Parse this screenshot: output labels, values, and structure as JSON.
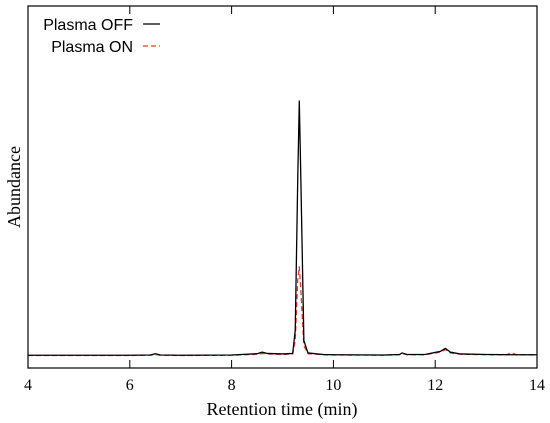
{
  "chart_data": {
    "type": "line",
    "xlabel": "Retention time (min)",
    "ylabel": "Abundance",
    "xlim": [
      4,
      14
    ],
    "ylim": [
      0,
      100
    ],
    "xticks": [
      4,
      6,
      8,
      10,
      12,
      14
    ],
    "y_tick_labels_shown": false,
    "grid": false,
    "legend_position": "top-left",
    "series": [
      {
        "name": "Plasma OFF",
        "color": "#000000",
        "dash": "solid",
        "x": [
          4.0,
          5.0,
          6.0,
          6.4,
          6.5,
          6.6,
          7.0,
          8.0,
          8.5,
          8.6,
          8.7,
          9.0,
          9.2,
          9.25,
          9.3,
          9.33,
          9.36,
          9.42,
          9.5,
          9.8,
          10.0,
          11.0,
          11.3,
          11.35,
          11.45,
          11.8,
          12.0,
          12.1,
          12.2,
          12.3,
          12.5,
          13.0,
          13.5,
          14.0
        ],
        "y": [
          0.3,
          0.3,
          0.3,
          0.4,
          0.9,
          0.4,
          0.3,
          0.4,
          0.9,
          1.5,
          1.0,
          0.8,
          1.0,
          10.0,
          70.0,
          100.0,
          70.0,
          6.0,
          1.2,
          0.6,
          0.5,
          0.4,
          0.6,
          1.2,
          0.6,
          0.6,
          1.4,
          1.8,
          3.0,
          1.5,
          0.8,
          0.6,
          0.5,
          0.5
        ]
      },
      {
        "name": "Plasma ON",
        "color": "#e8382b",
        "dash": "dashed",
        "x": [
          4.0,
          5.0,
          6.0,
          6.4,
          6.5,
          6.6,
          7.0,
          8.0,
          8.5,
          8.6,
          8.7,
          9.0,
          9.2,
          9.25,
          9.3,
          9.33,
          9.36,
          9.42,
          9.5,
          9.8,
          10.0,
          11.0,
          11.3,
          11.35,
          11.45,
          11.8,
          12.0,
          12.1,
          12.2,
          12.3,
          12.5,
          13.0,
          13.4,
          13.5,
          13.6,
          14.0
        ],
        "y": [
          0.2,
          0.2,
          0.2,
          0.3,
          0.6,
          0.3,
          0.2,
          0.3,
          0.7,
          1.0,
          0.8,
          0.6,
          0.8,
          6.0,
          30.0,
          35.0,
          26.0,
          4.0,
          0.9,
          0.5,
          0.4,
          0.3,
          0.5,
          0.9,
          0.5,
          0.5,
          1.2,
          1.5,
          2.5,
          1.2,
          0.7,
          0.5,
          0.5,
          1.2,
          0.5,
          0.4
        ]
      }
    ]
  }
}
